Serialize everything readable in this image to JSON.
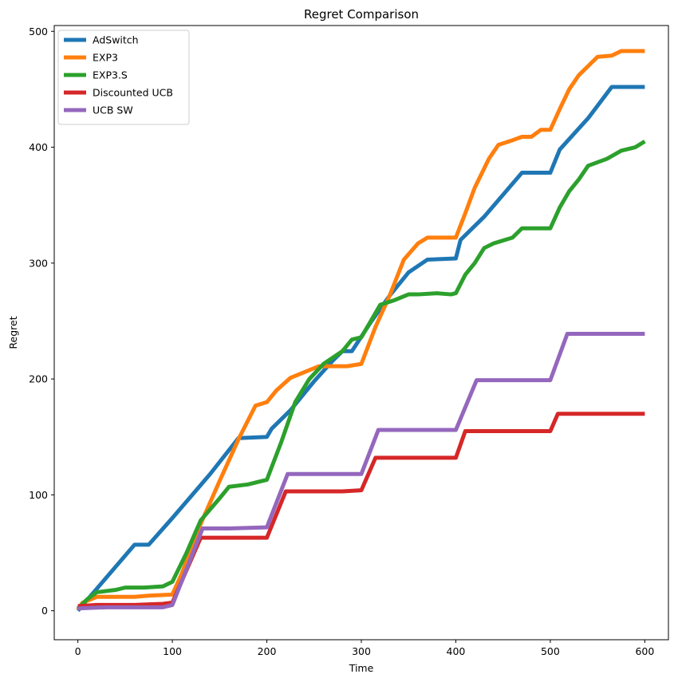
{
  "chart_data": {
    "type": "line",
    "title": "Regret Comparison",
    "xlabel": "Time",
    "ylabel": "Regret",
    "xlim": [
      -25,
      625
    ],
    "ylim": [
      -25,
      505
    ],
    "xticks": [
      0,
      100,
      200,
      300,
      400,
      500,
      600
    ],
    "yticks": [
      0,
      100,
      200,
      300,
      400,
      500
    ],
    "grid": false,
    "legend_position": "top-left",
    "series": [
      {
        "name": "AdSwitch",
        "color": "#1f77b4",
        "points": [
          [
            0,
            0
          ],
          [
            60,
            57
          ],
          [
            75,
            57
          ],
          [
            100,
            80
          ],
          [
            120,
            99
          ],
          [
            140,
            118
          ],
          [
            170,
            149
          ],
          [
            200,
            150
          ],
          [
            205,
            157
          ],
          [
            225,
            173
          ],
          [
            250,
            198
          ],
          [
            270,
            216
          ],
          [
            280,
            224
          ],
          [
            290,
            224
          ],
          [
            310,
            249
          ],
          [
            330,
            272
          ],
          [
            350,
            292
          ],
          [
            370,
            303
          ],
          [
            400,
            304
          ],
          [
            405,
            320
          ],
          [
            430,
            340
          ],
          [
            470,
            378
          ],
          [
            500,
            378
          ],
          [
            510,
            398
          ],
          [
            540,
            425
          ],
          [
            565,
            452
          ],
          [
            600,
            452
          ]
        ]
      },
      {
        "name": "EXP3",
        "color": "#ff7f0e",
        "points": [
          [
            0,
            1
          ],
          [
            5,
            7
          ],
          [
            20,
            12
          ],
          [
            40,
            12
          ],
          [
            60,
            12
          ],
          [
            75,
            13
          ],
          [
            100,
            14
          ],
          [
            110,
            32
          ],
          [
            130,
            75
          ],
          [
            150,
            112
          ],
          [
            170,
            148
          ],
          [
            188,
            177
          ],
          [
            200,
            180
          ],
          [
            210,
            190
          ],
          [
            225,
            201
          ],
          [
            240,
            206
          ],
          [
            255,
            211
          ],
          [
            270,
            211
          ],
          [
            285,
            211
          ],
          [
            300,
            213
          ],
          [
            315,
            245
          ],
          [
            330,
            272
          ],
          [
            345,
            303
          ],
          [
            360,
            317
          ],
          [
            370,
            322
          ],
          [
            385,
            322
          ],
          [
            400,
            322
          ],
          [
            410,
            343
          ],
          [
            420,
            365
          ],
          [
            435,
            390
          ],
          [
            445,
            402
          ],
          [
            460,
            406
          ],
          [
            470,
            409
          ],
          [
            480,
            409
          ],
          [
            490,
            415
          ],
          [
            500,
            415
          ],
          [
            510,
            433
          ],
          [
            520,
            450
          ],
          [
            530,
            462
          ],
          [
            540,
            470
          ],
          [
            550,
            478
          ],
          [
            565,
            479
          ],
          [
            575,
            483
          ],
          [
            600,
            483
          ]
        ]
      },
      {
        "name": "EXP3.S",
        "color": "#2ca02c",
        "points": [
          [
            0,
            2
          ],
          [
            10,
            10
          ],
          [
            20,
            16
          ],
          [
            40,
            18
          ],
          [
            50,
            20
          ],
          [
            70,
            20
          ],
          [
            90,
            21
          ],
          [
            100,
            25
          ],
          [
            115,
            50
          ],
          [
            130,
            78
          ],
          [
            150,
            97
          ],
          [
            160,
            107
          ],
          [
            180,
            109
          ],
          [
            195,
            112
          ],
          [
            200,
            113
          ],
          [
            215,
            145
          ],
          [
            230,
            180
          ],
          [
            245,
            200
          ],
          [
            260,
            213
          ],
          [
            280,
            224
          ],
          [
            290,
            234
          ],
          [
            300,
            236
          ],
          [
            310,
            250
          ],
          [
            320,
            264
          ],
          [
            335,
            268
          ],
          [
            350,
            273
          ],
          [
            360,
            273
          ],
          [
            380,
            274
          ],
          [
            395,
            273
          ],
          [
            400,
            274
          ],
          [
            410,
            290
          ],
          [
            420,
            300
          ],
          [
            430,
            313
          ],
          [
            440,
            317
          ],
          [
            460,
            322
          ],
          [
            470,
            330
          ],
          [
            490,
            330
          ],
          [
            500,
            330
          ],
          [
            510,
            348
          ],
          [
            520,
            362
          ],
          [
            530,
            372
          ],
          [
            540,
            384
          ],
          [
            560,
            390
          ],
          [
            575,
            397
          ],
          [
            590,
            400
          ],
          [
            600,
            405
          ]
        ]
      },
      {
        "name": "Discounted UCB",
        "color": "#d62728",
        "points": [
          [
            0,
            4
          ],
          [
            20,
            5
          ],
          [
            60,
            5
          ],
          [
            90,
            6
          ],
          [
            100,
            7
          ],
          [
            130,
            63
          ],
          [
            160,
            63
          ],
          [
            200,
            63
          ],
          [
            220,
            103
          ],
          [
            250,
            103
          ],
          [
            280,
            103
          ],
          [
            300,
            104
          ],
          [
            315,
            132
          ],
          [
            340,
            132
          ],
          [
            380,
            132
          ],
          [
            400,
            132
          ],
          [
            410,
            155
          ],
          [
            450,
            155
          ],
          [
            480,
            155
          ],
          [
            500,
            155
          ],
          [
            508,
            170
          ],
          [
            540,
            170
          ],
          [
            570,
            170
          ],
          [
            600,
            170
          ]
        ]
      },
      {
        "name": "UCB SW",
        "color": "#9467bd",
        "points": [
          [
            0,
            2
          ],
          [
            30,
            3
          ],
          [
            60,
            3
          ],
          [
            90,
            3
          ],
          [
            100,
            5
          ],
          [
            132,
            71
          ],
          [
            160,
            71
          ],
          [
            200,
            72
          ],
          [
            222,
            118
          ],
          [
            250,
            118
          ],
          [
            280,
            118
          ],
          [
            300,
            118
          ],
          [
            318,
            156
          ],
          [
            350,
            156
          ],
          [
            380,
            156
          ],
          [
            400,
            156
          ],
          [
            422,
            199
          ],
          [
            450,
            199
          ],
          [
            480,
            199
          ],
          [
            500,
            199
          ],
          [
            518,
            239
          ],
          [
            550,
            239
          ],
          [
            580,
            239
          ],
          [
            600,
            239
          ]
        ]
      }
    ]
  }
}
